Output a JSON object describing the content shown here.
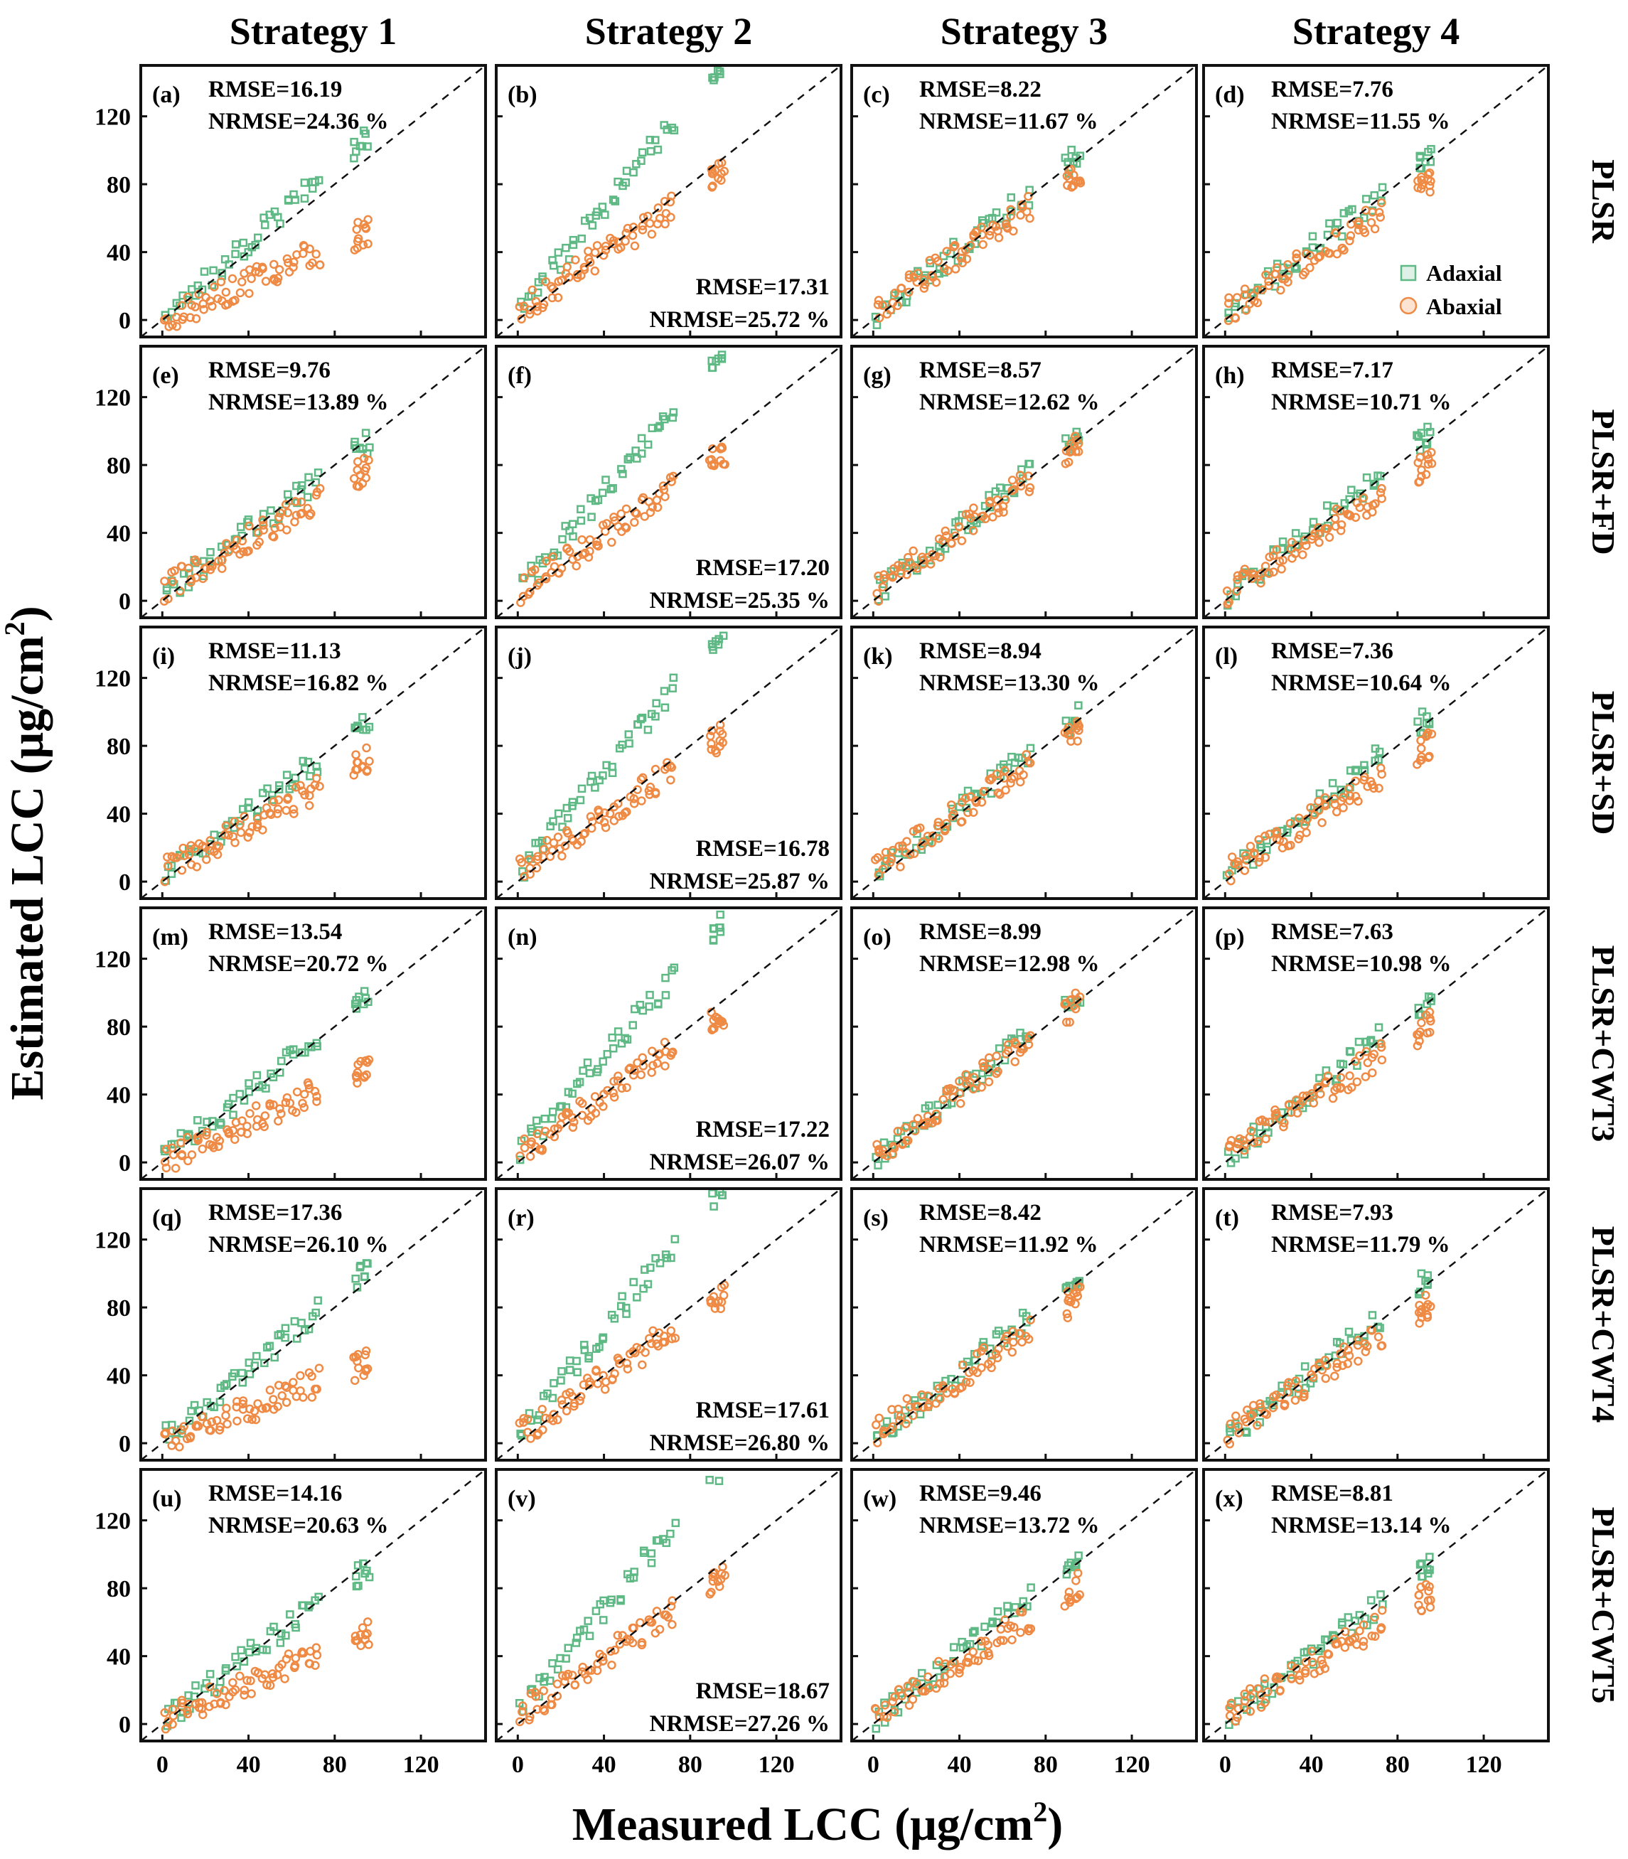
{
  "figure": {
    "xlabel": "Measured LCC (μg/cm",
    "ylabel": "Estimated LCC (μg/cm",
    "unit_superscript": "2",
    "columns": [
      "Strategy 1",
      "Strategy 2",
      "Strategy 3",
      "Strategy 4"
    ],
    "rows": [
      "PLSR",
      "PLSR+FD",
      "PLSR+SD",
      "PLSR+CWT3",
      "PLSR+CWT4",
      "PLSR+CWT5"
    ],
    "legend": {
      "adaxial": "Adaxial",
      "abaxial": "Abaxial"
    },
    "colors": {
      "adaxial": "#5fb985",
      "abaxial": "#ef8a45",
      "frame": "#111111",
      "line": "#111111"
    }
  },
  "chart_data": {
    "type": "scatter",
    "x_range": [
      -10,
      150
    ],
    "y_range": [
      -10,
      150
    ],
    "xticks": [
      "0",
      "40",
      "80",
      "120"
    ],
    "yticks": [
      "0",
      "40",
      "80",
      "120"
    ],
    "x_tick_values": [
      0,
      40,
      80,
      120
    ],
    "y_tick_values": [
      0,
      40,
      80,
      120
    ],
    "reference_line": "1:1 dashed",
    "series_names": [
      "Adaxial",
      "Abaxial"
    ],
    "panels": [
      {
        "label": "(a)",
        "row": 0,
        "col": 0,
        "ad_rmse": "",
        "ad_nrmse": "",
        "ab_rmse": "RMSE=16.19",
        "ab_nrmse": "NRMSE=24.36 %",
        "ad_slope": 1.1,
        "ad_int": 2,
        "ab_slope": 0.55,
        "ab_int": 0
      },
      {
        "label": "(b)",
        "row": 0,
        "col": 1,
        "ad_rmse": "RMSE=17.31",
        "ad_nrmse": "NRMSE=25.72 %",
        "ab_rmse": "",
        "ab_nrmse": "",
        "ad_slope": 1.55,
        "ad_int": 5,
        "ab_slope": 0.85,
        "ab_int": 5
      },
      {
        "label": "(c)",
        "row": 0,
        "col": 2,
        "ad_rmse": "",
        "ad_nrmse": "",
        "ab_rmse": "RMSE=8.22",
        "ab_nrmse": "NRMSE=11.67 %",
        "ad_slope": 1.0,
        "ad_int": 2,
        "ab_slope": 0.85,
        "ab_int": 5
      },
      {
        "label": "(d)",
        "row": 0,
        "col": 3,
        "ad_rmse": "",
        "ad_nrmse": "",
        "ab_rmse": "RMSE=7.76",
        "ab_nrmse": "NRMSE=11.55 %",
        "ad_slope": 1.0,
        "ad_int": 2,
        "ab_slope": 0.8,
        "ab_int": 5
      },
      {
        "label": "(e)",
        "row": 1,
        "col": 0,
        "ad_rmse": "",
        "ad_nrmse": "",
        "ab_rmse": "RMSE=9.76",
        "ab_nrmse": "NRMSE=13.89 %",
        "ad_slope": 0.95,
        "ad_int": 3,
        "ab_slope": 0.75,
        "ab_int": 6
      },
      {
        "label": "(f)",
        "row": 1,
        "col": 1,
        "ad_rmse": "RMSE=17.20",
        "ad_nrmse": "NRMSE=25.35 %",
        "ab_rmse": "",
        "ab_nrmse": "",
        "ad_slope": 1.5,
        "ad_int": 5,
        "ab_slope": 0.85,
        "ab_int": 5
      },
      {
        "label": "(g)",
        "row": 1,
        "col": 2,
        "ad_rmse": "",
        "ad_nrmse": "",
        "ab_rmse": "RMSE=8.57",
        "ab_nrmse": "NRMSE=12.62 %",
        "ad_slope": 1.0,
        "ad_int": 3,
        "ab_slope": 0.9,
        "ab_int": 5
      },
      {
        "label": "(h)",
        "row": 1,
        "col": 3,
        "ad_rmse": "",
        "ad_nrmse": "",
        "ab_rmse": "RMSE=7.17",
        "ab_nrmse": "NRMSE=10.71 %",
        "ad_slope": 1.0,
        "ad_int": 2,
        "ab_slope": 0.8,
        "ab_int": 5
      },
      {
        "label": "(i)",
        "row": 2,
        "col": 0,
        "ad_rmse": "",
        "ad_nrmse": "",
        "ab_rmse": "RMSE=11.13",
        "ab_nrmse": "NRMSE=16.82 %",
        "ad_slope": 0.95,
        "ad_int": 3,
        "ab_slope": 0.7,
        "ab_int": 5
      },
      {
        "label": "(j)",
        "row": 2,
        "col": 1,
        "ad_rmse": "RMSE=16.78",
        "ad_nrmse": "NRMSE=25.87 %",
        "ab_rmse": "",
        "ab_nrmse": "",
        "ad_slope": 1.5,
        "ad_int": 5,
        "ab_slope": 0.85,
        "ab_int": 5
      },
      {
        "label": "(k)",
        "row": 2,
        "col": 2,
        "ad_rmse": "",
        "ad_nrmse": "",
        "ab_rmse": "RMSE=8.94",
        "ab_nrmse": "NRMSE=13.30 %",
        "ad_slope": 1.0,
        "ad_int": 3,
        "ab_slope": 0.9,
        "ab_int": 5
      },
      {
        "label": "(l)",
        "row": 2,
        "col": 3,
        "ad_rmse": "",
        "ad_nrmse": "",
        "ab_rmse": "RMSE=7.36",
        "ab_nrmse": "NRMSE=10.64 %",
        "ad_slope": 1.0,
        "ad_int": 2,
        "ab_slope": 0.8,
        "ab_int": 5
      },
      {
        "label": "(m)",
        "row": 3,
        "col": 0,
        "ad_rmse": "",
        "ad_nrmse": "",
        "ab_rmse": "RMSE=13.54",
        "ab_nrmse": "NRMSE=20.72 %",
        "ad_slope": 1.0,
        "ad_int": 2,
        "ab_slope": 0.6,
        "ab_int": 0
      },
      {
        "label": "(n)",
        "row": 3,
        "col": 1,
        "ad_rmse": "RMSE=17.22",
        "ad_nrmse": "NRMSE=26.07 %",
        "ab_rmse": "",
        "ab_nrmse": "",
        "ad_slope": 1.45,
        "ad_int": 5,
        "ab_slope": 0.85,
        "ab_int": 5
      },
      {
        "label": "(o)",
        "row": 3,
        "col": 2,
        "ad_rmse": "",
        "ad_nrmse": "",
        "ab_rmse": "RMSE=8.99",
        "ab_nrmse": "NRMSE=12.98 %",
        "ad_slope": 1.0,
        "ad_int": 3,
        "ab_slope": 0.95,
        "ab_int": 3
      },
      {
        "label": "(p)",
        "row": 3,
        "col": 3,
        "ad_rmse": "",
        "ad_nrmse": "",
        "ab_rmse": "RMSE=7.63",
        "ab_nrmse": "NRMSE=10.98 %",
        "ad_slope": 1.0,
        "ad_int": 2,
        "ab_slope": 0.8,
        "ab_int": 5
      },
      {
        "label": "(q)",
        "row": 4,
        "col": 0,
        "ad_rmse": "",
        "ad_nrmse": "",
        "ab_rmse": "RMSE=17.36",
        "ab_nrmse": "NRMSE=26.10 %",
        "ad_slope": 1.05,
        "ad_int": 2,
        "ab_slope": 0.5,
        "ab_int": 0
      },
      {
        "label": "(r)",
        "row": 4,
        "col": 1,
        "ad_rmse": "RMSE=17.61",
        "ad_nrmse": "NRMSE=26.80 %",
        "ab_rmse": "",
        "ab_nrmse": "",
        "ad_slope": 1.55,
        "ad_int": 5,
        "ab_slope": 0.85,
        "ab_int": 5
      },
      {
        "label": "(s)",
        "row": 4,
        "col": 2,
        "ad_rmse": "",
        "ad_nrmse": "",
        "ab_rmse": "RMSE=8.42",
        "ab_nrmse": "NRMSE=11.92 %",
        "ad_slope": 1.0,
        "ad_int": 2,
        "ab_slope": 0.85,
        "ab_int": 5
      },
      {
        "label": "(t)",
        "row": 4,
        "col": 3,
        "ad_rmse": "",
        "ad_nrmse": "",
        "ab_rmse": "RMSE=7.93",
        "ab_nrmse": "NRMSE=11.79 %",
        "ad_slope": 1.0,
        "ad_int": 2,
        "ab_slope": 0.8,
        "ab_int": 5
      },
      {
        "label": "(u)",
        "row": 5,
        "col": 0,
        "ad_rmse": "",
        "ad_nrmse": "",
        "ab_rmse": "RMSE=14.16",
        "ab_nrmse": "NRMSE=20.63 %",
        "ad_slope": 0.95,
        "ad_int": 2,
        "ab_slope": 0.55,
        "ab_int": 2
      },
      {
        "label": "(v)",
        "row": 5,
        "col": 1,
        "ad_rmse": "RMSE=18.67",
        "ad_nrmse": "NRMSE=27.26 %",
        "ab_rmse": "",
        "ab_nrmse": "",
        "ad_slope": 1.55,
        "ad_int": 5,
        "ab_slope": 0.85,
        "ab_int": 5
      },
      {
        "label": "(w)",
        "row": 5,
        "col": 2,
        "ad_rmse": "",
        "ad_nrmse": "",
        "ab_rmse": "RMSE=9.46",
        "ab_nrmse": "NRMSE=13.72 %",
        "ad_slope": 1.0,
        "ad_int": 2,
        "ab_slope": 0.8,
        "ab_int": 5
      },
      {
        "label": "(x)",
        "row": 5,
        "col": 3,
        "ad_rmse": "",
        "ad_nrmse": "",
        "ab_rmse": "RMSE=8.81",
        "ab_nrmse": "NRMSE=13.14 %",
        "ad_slope": 0.95,
        "ad_int": 2,
        "ab_slope": 0.75,
        "ab_int": 5
      }
    ]
  }
}
